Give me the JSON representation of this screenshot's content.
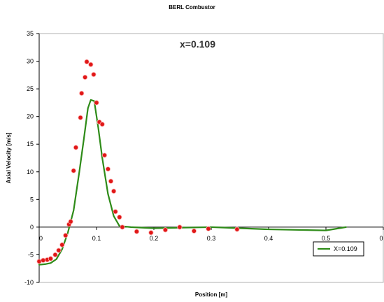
{
  "chart_data": {
    "type": "line",
    "title": "BERL Combustor",
    "xlabel": "Position [m]",
    "ylabel": "Axial Velocity [m/s]",
    "annotation": "x=0.109",
    "xlim": [
      0,
      0.6
    ],
    "ylim": [
      -10,
      35
    ],
    "x_ticks": [
      "0",
      "0.1",
      "0.2",
      "0.3",
      "0.4",
      "0.5",
      "0"
    ],
    "y_ticks": [
      "-10",
      "-5",
      "0",
      "5",
      "10",
      "15",
      "20",
      "25",
      "30",
      "35"
    ],
    "legend": {
      "placement": "bottom-right",
      "entries": [
        "X=0.109"
      ]
    },
    "series": [
      {
        "name": "X=0.109",
        "kind": "line",
        "color": "#2e8b18",
        "points": [
          [
            0.0,
            -6.8
          ],
          [
            0.01,
            -6.7
          ],
          [
            0.02,
            -6.5
          ],
          [
            0.03,
            -5.8
          ],
          [
            0.04,
            -4.0
          ],
          [
            0.05,
            -1.0
          ],
          [
            0.06,
            3.0
          ],
          [
            0.07,
            10.0
          ],
          [
            0.078,
            16.0
          ],
          [
            0.085,
            21.5
          ],
          [
            0.09,
            23.0
          ],
          [
            0.096,
            22.8
          ],
          [
            0.103,
            18.0
          ],
          [
            0.11,
            12.5
          ],
          [
            0.12,
            6.0
          ],
          [
            0.13,
            2.0
          ],
          [
            0.14,
            0.2
          ],
          [
            0.16,
            0.0
          ],
          [
            0.2,
            -0.2
          ],
          [
            0.3,
            0.0
          ],
          [
            0.4,
            -0.4
          ],
          [
            0.5,
            -0.6
          ],
          [
            0.535,
            0.0
          ]
        ]
      },
      {
        "name": "",
        "kind": "scatter",
        "color": "#e01818",
        "points": [
          [
            0.0,
            -6.2
          ],
          [
            0.007,
            -6.0
          ],
          [
            0.014,
            -5.9
          ],
          [
            0.02,
            -5.7
          ],
          [
            0.028,
            -5.0
          ],
          [
            0.034,
            -4.2
          ],
          [
            0.04,
            -3.2
          ],
          [
            0.046,
            -1.5
          ],
          [
            0.052,
            0.5
          ],
          [
            0.055,
            1.0
          ],
          [
            0.06,
            10.2
          ],
          [
            0.064,
            14.4
          ],
          [
            0.072,
            19.8
          ],
          [
            0.074,
            24.2
          ],
          [
            0.08,
            27.1
          ],
          [
            0.083,
            29.9
          ],
          [
            0.09,
            29.4
          ],
          [
            0.095,
            27.6
          ],
          [
            0.1,
            22.5
          ],
          [
            0.105,
            19.0
          ],
          [
            0.11,
            18.6
          ],
          [
            0.114,
            13.0
          ],
          [
            0.12,
            10.5
          ],
          [
            0.125,
            8.3
          ],
          [
            0.13,
            6.5
          ],
          [
            0.133,
            2.8
          ],
          [
            0.14,
            1.8
          ],
          [
            0.145,
            0.0
          ],
          [
            0.17,
            -0.8
          ],
          [
            0.195,
            -1.0
          ],
          [
            0.22,
            -0.5
          ],
          [
            0.245,
            0.0
          ],
          [
            0.27,
            -0.7
          ],
          [
            0.295,
            -0.3
          ],
          [
            0.345,
            -0.4
          ]
        ]
      }
    ]
  }
}
